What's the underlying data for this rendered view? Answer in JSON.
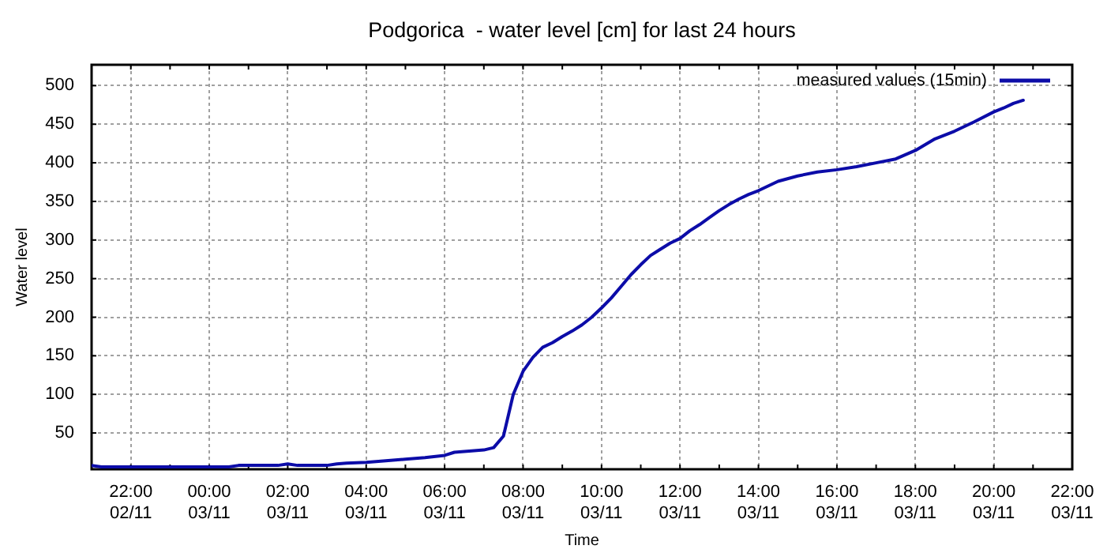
{
  "chart_data": {
    "type": "line",
    "title": "Podgorica  - water level [cm] for last 24 hours",
    "xlabel": "Time",
    "ylabel": "Water level",
    "x": [
      "--11-02T21:00",
      "--11-02T21:15",
      "--11-02T23:00",
      "--11-03T00:30",
      "--11-03T00:45",
      "--11-03T01:45",
      "--11-03T02:00",
      "--11-03T02:15",
      "--11-03T03:00",
      "--11-03T03:15",
      "--11-03T03:30",
      "--11-03T04:00",
      "--11-03T04:30",
      "--11-03T05:00",
      "--11-03T05:30",
      "--11-03T06:00",
      "--11-03T06:15",
      "--11-03T06:45",
      "--11-03T07:00",
      "--11-03T07:15",
      "--11-03T07:30",
      "--11-03T07:45",
      "--11-03T08:00",
      "--11-03T08:15",
      "--11-03T08:30",
      "--11-03T08:45",
      "--11-03T09:00",
      "--11-03T09:15",
      "--11-03T09:30",
      "--11-03T09:45",
      "--11-03T10:00",
      "--11-03T10:15",
      "--11-03T10:30",
      "--11-03T10:45",
      "--11-03T11:00",
      "--11-03T11:15",
      "--11-03T11:30",
      "--11-03T11:45",
      "--11-03T12:00",
      "--11-03T12:15",
      "--11-03T12:30",
      "--11-03T12:45",
      "--11-03T13:00",
      "--11-03T13:15",
      "--11-03T13:30",
      "--11-03T13:45",
      "--11-03T14:00",
      "--11-03T14:30",
      "--11-03T15:00",
      "--11-03T15:30",
      "--11-03T16:00",
      "--11-03T16:30",
      "--11-03T17:00",
      "--11-03T17:30",
      "--11-03T18:00",
      "--11-03T18:30",
      "--11-03T19:00",
      "--11-03T19:30",
      "--11-03T20:00",
      "--11-03T20:15",
      "--11-03T20:30",
      "--11-03T20:45"
    ],
    "series": [
      {
        "name": "measured values (15min)",
        "color": "#0c0ca8",
        "values": [
          8,
          6,
          6,
          6,
          8,
          8,
          10,
          8,
          8,
          10,
          11,
          12,
          14,
          16,
          18,
          21,
          25,
          27,
          28,
          31,
          46,
          100,
          130,
          148,
          161,
          167,
          175,
          182,
          190,
          200,
          212,
          225,
          240,
          255,
          268,
          280,
          288,
          296,
          302,
          312,
          320,
          329,
          338,
          346,
          353,
          359,
          364,
          376,
          383,
          388,
          391,
          395,
          400,
          405,
          416,
          431,
          441,
          453,
          466,
          471,
          477,
          481
        ]
      }
    ],
    "xlim": [
      "--11-02T21:00",
      "--11-03T22:00"
    ],
    "xticks": [
      {
        "value": "--11-02T22:00",
        "label": "22:00\n02/11"
      },
      {
        "value": "--11-02T23:00",
        "label": null
      },
      {
        "value": "--11-03T00:00",
        "label": "00:00\n03/11"
      },
      {
        "value": "--11-03T01:00",
        "label": null
      },
      {
        "value": "--11-03T02:00",
        "label": "02:00\n03/11"
      },
      {
        "value": "--11-03T03:00",
        "label": null
      },
      {
        "value": "--11-03T04:00",
        "label": "04:00\n03/11"
      },
      {
        "value": "--11-03T05:00",
        "label": null
      },
      {
        "value": "--11-03T06:00",
        "label": "06:00\n03/11"
      },
      {
        "value": "--11-03T07:00",
        "label": null
      },
      {
        "value": "--11-03T08:00",
        "label": "08:00\n03/11"
      },
      {
        "value": "--11-03T09:00",
        "label": null
      },
      {
        "value": "--11-03T10:00",
        "label": "10:00\n03/11"
      },
      {
        "value": "--11-03T11:00",
        "label": null
      },
      {
        "value": "--11-03T12:00",
        "label": "12:00\n03/11"
      },
      {
        "value": "--11-03T13:00",
        "label": null
      },
      {
        "value": "--11-03T14:00",
        "label": "14:00\n03/11"
      },
      {
        "value": "--11-03T15:00",
        "label": null
      },
      {
        "value": "--11-03T16:00",
        "label": "16:00\n03/11"
      },
      {
        "value": "--11-03T17:00",
        "label": null
      },
      {
        "value": "--11-03T18:00",
        "label": "18:00\n03/11"
      },
      {
        "value": "--11-03T19:00",
        "label": null
      },
      {
        "value": "--11-03T20:00",
        "label": "20:00\n03/11"
      },
      {
        "value": "--11-03T21:00",
        "label": null
      },
      {
        "value": "--11-03T22:00",
        "label": "22:00\n03/11"
      }
    ],
    "ylim": [
      3,
      527
    ],
    "yticks": [
      50,
      100,
      150,
      200,
      250,
      300,
      350,
      400,
      450,
      500
    ],
    "grid": true,
    "legend": "top right",
    "marker": "none",
    "line_style": "solid"
  }
}
